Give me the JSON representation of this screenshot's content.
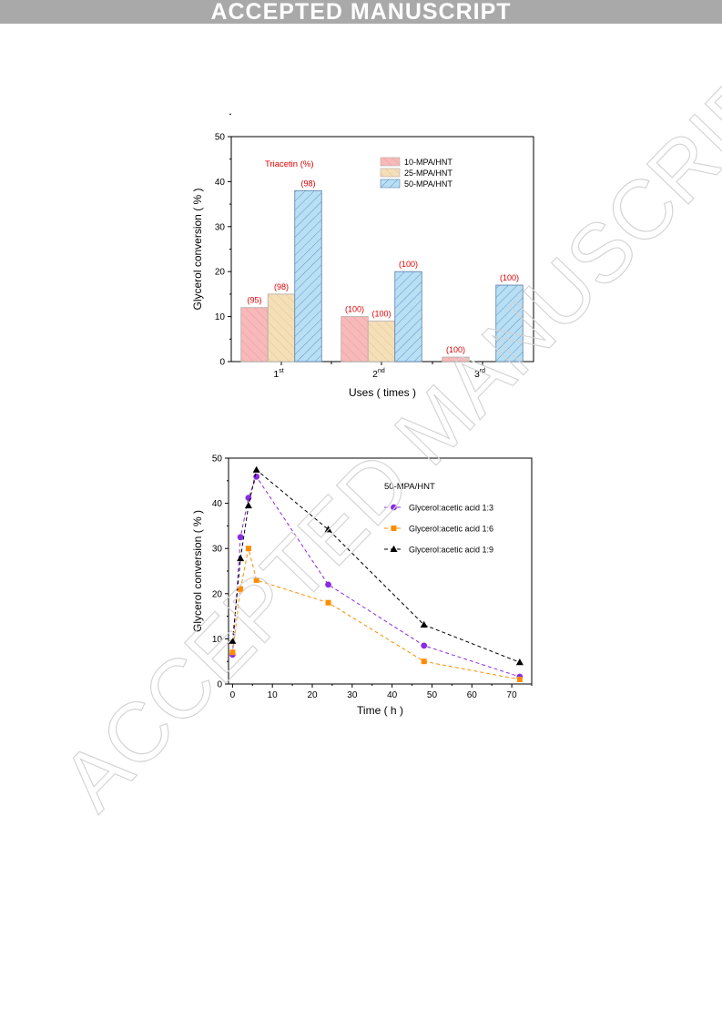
{
  "banner": {
    "text": "ACCEPTED MANUSCRIPT"
  },
  "watermark": {
    "text": "ACCEPTED MANUSCRIPT"
  },
  "chart_data": [
    {
      "type": "bar",
      "xlabel": "Uses ( times )",
      "ylabel": "Glycerol conversion ( % )",
      "ylim": [
        0,
        50
      ],
      "yticks": [
        0,
        10,
        20,
        30,
        40,
        50
      ],
      "categories": [
        {
          "base": "1",
          "sup": "st"
        },
        {
          "base": "2",
          "sup": "nd"
        },
        {
          "base": "3",
          "sup": "rd"
        }
      ],
      "annotation": "Triacetin (%)",
      "legend_position": "top-right",
      "series": [
        {
          "name": "10-MPA/HNT",
          "color": "#f7b9b9",
          "hatch": "#f19a9a",
          "values": [
            12,
            10,
            1
          ],
          "labels": [
            "(95)",
            "(100)",
            "(100)"
          ]
        },
        {
          "name": "25-MPA/HNT",
          "color": "#f4dfb8",
          "hatch": "#e3c48e",
          "values": [
            15,
            9,
            null
          ],
          "labels": [
            "(98)",
            "(100)",
            null
          ]
        },
        {
          "name": "50-MPA/HNT",
          "color": "#b9dff5",
          "hatch": "#5a95c4",
          "values": [
            38,
            20,
            17
          ],
          "labels": [
            "(98)",
            "(100)",
            "(100)"
          ]
        }
      ],
      "label_color": "#e00000"
    },
    {
      "type": "line",
      "xlabel": "Time ( h )",
      "ylabel": "Glycerol conversion ( % )",
      "xlim": [
        -1,
        75
      ],
      "ylim": [
        0,
        50
      ],
      "xticks": [
        0,
        10,
        20,
        30,
        40,
        50,
        60,
        70
      ],
      "yticks": [
        0,
        10,
        20,
        30,
        40,
        50
      ],
      "legend_title": "50-MPA/HNT",
      "legend_position": "top-right",
      "series": [
        {
          "name": "Glycerol:acetic acid 1:3",
          "color": "#8a2be2",
          "marker": "circle",
          "x": [
            0,
            2,
            4,
            6,
            24,
            48,
            72
          ],
          "y": [
            6.5,
            32.5,
            41.2,
            45.9,
            22,
            8.5,
            1.6
          ]
        },
        {
          "name": "Glycerol:acetic acid 1:6",
          "color": "#ff8c00",
          "marker": "square",
          "x": [
            0,
            2,
            4,
            6,
            24,
            48,
            72
          ],
          "y": [
            7,
            21,
            30,
            23,
            18,
            5,
            1
          ]
        },
        {
          "name": "Glycerol:acetic acid 1:9",
          "color": "#000000",
          "marker": "triangle",
          "x": [
            0,
            2,
            4,
            6,
            24,
            48,
            72
          ],
          "y": [
            9.5,
            27.8,
            39.5,
            47.4,
            34.2,
            13.1,
            4.8
          ]
        }
      ]
    }
  ]
}
